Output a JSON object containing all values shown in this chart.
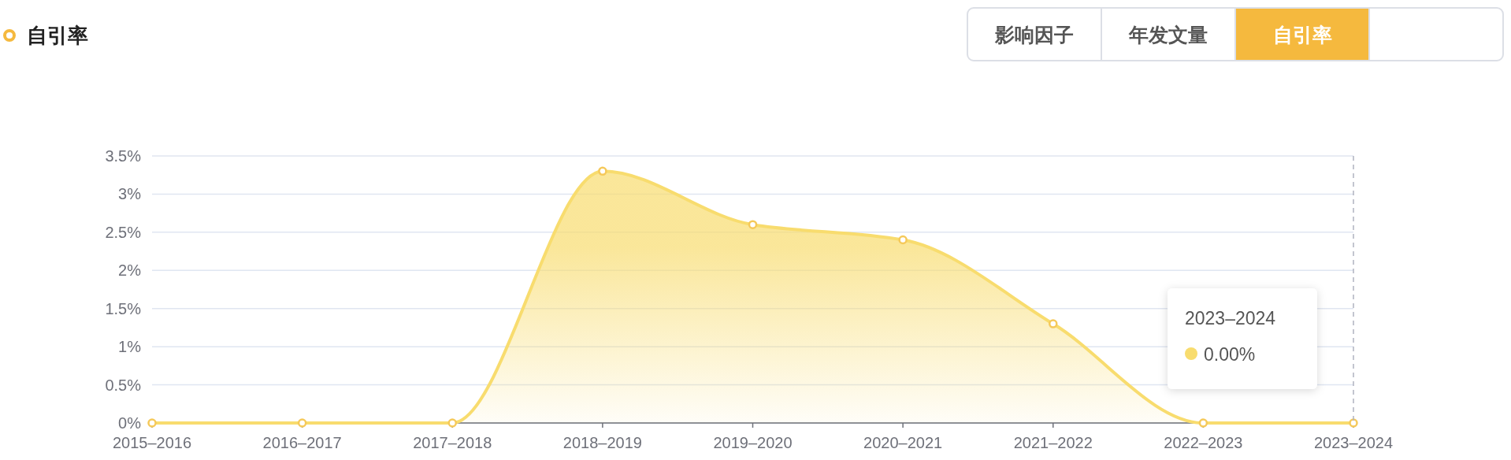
{
  "chart_data": {
    "type": "area",
    "title": "自引率",
    "categories": [
      "2015–2016",
      "2016–2017",
      "2017–2018",
      "2018–2019",
      "2019–2020",
      "2020–2021",
      "2021–2022",
      "2022–2023",
      "2023–2024"
    ],
    "series": [
      {
        "color": "#f8dc6e",
        "values": [
          0,
          0,
          0,
          3.3,
          2.6,
          2.4,
          1.3,
          0,
          0
        ]
      }
    ],
    "ylim": [
      0,
      3.5
    ],
    "yticks": [
      {
        "value": 0,
        "label": "0%"
      },
      {
        "value": 0.5,
        "label": "0.5%"
      },
      {
        "value": 1,
        "label": "1%"
      },
      {
        "value": 1.5,
        "label": "1.5%"
      },
      {
        "value": 2,
        "label": "2%"
      },
      {
        "value": 2.5,
        "label": "2.5%"
      },
      {
        "value": 3,
        "label": "3%"
      },
      {
        "value": 3.5,
        "label": "3.5%"
      }
    ],
    "grid": "y",
    "marker": "circle",
    "line_style": "solid",
    "ref_lines": [
      {
        "axis": "x",
        "value": "2023–2024",
        "line_style": "dashed",
        "color": "#b0b3c0"
      }
    ],
    "annotations": [
      "影响因子",
      "年发文量",
      "自引率",
      "2023–2024",
      "0.00%"
    ]
  }
}
